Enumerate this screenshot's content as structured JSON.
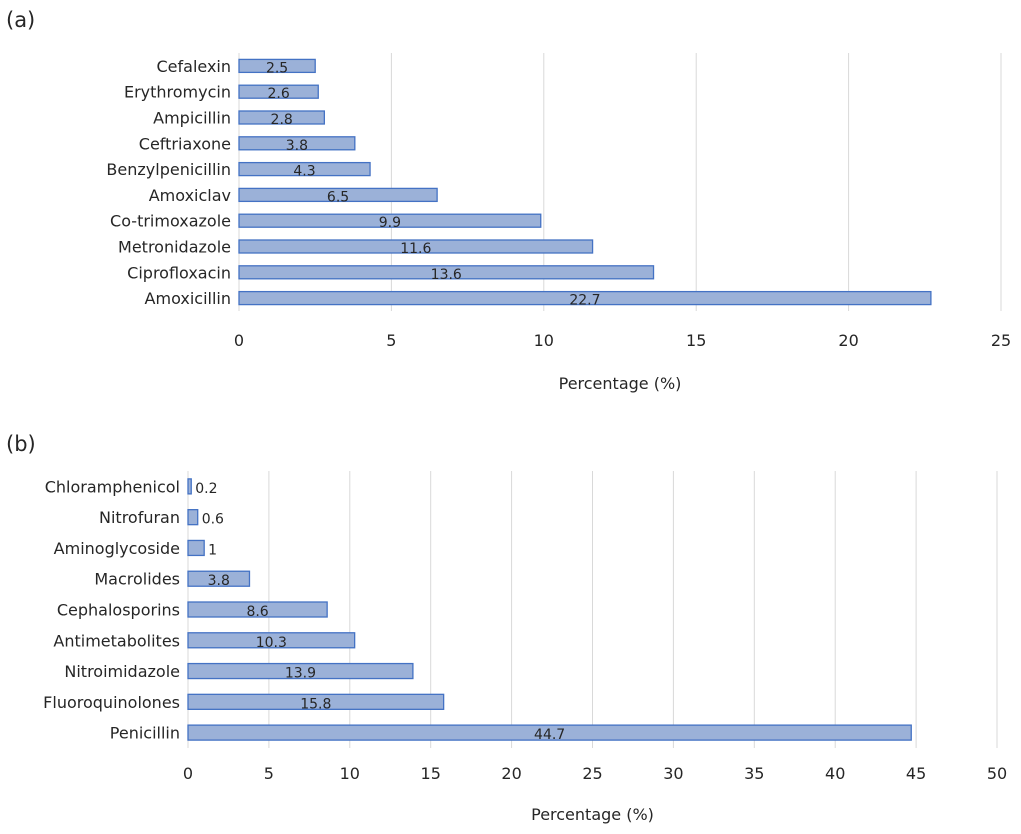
{
  "panels": {
    "a": {
      "label": "(a)"
    },
    "b": {
      "label": "(b)"
    }
  },
  "chart_data": [
    {
      "type": "bar",
      "orientation": "horizontal",
      "categories": [
        "Cefalexin",
        "Erythromycin",
        "Ampicillin",
        "Ceftriaxone",
        "Benzylpenicillin",
        "Amoxiclav",
        "Co-trimoxazole",
        "Metronidazole",
        "Ciprofloxacin",
        "Amoxicillin"
      ],
      "values": [
        2.5,
        2.6,
        2.8,
        3.8,
        4.3,
        6.5,
        9.9,
        11.6,
        13.6,
        22.7
      ],
      "data_labels": [
        "2.5",
        "2.6",
        "2.8",
        "3.8",
        "4.3",
        "6.5",
        "9.9",
        "11.6",
        "13.6",
        "22.7"
      ],
      "xlabel": "Percentage (%)",
      "ylabel": "",
      "xlim": [
        0,
        25
      ],
      "xticks": [
        0,
        5,
        10,
        15,
        20,
        25
      ],
      "grid": true,
      "bar_fill": "#9bb1d8",
      "bar_stroke": "#4472c4"
    },
    {
      "type": "bar",
      "orientation": "horizontal",
      "categories": [
        "Chloramphenicol",
        "Nitrofuran",
        "Aminoglycoside",
        "Macrolides",
        "Cephalosporins",
        "Antimetabolites",
        "Nitroimidazole",
        "Fluoroquinolones",
        "Penicillin"
      ],
      "values": [
        0.2,
        0.6,
        1,
        3.8,
        8.6,
        10.3,
        13.9,
        15.8,
        44.7
      ],
      "data_labels": [
        "0.2",
        "0.6",
        "1",
        "3.8",
        "8.6",
        "10.3",
        "13.9",
        "15.8",
        "44.7"
      ],
      "xlabel": "Percentage (%)",
      "ylabel": "",
      "xlim": [
        0,
        50
      ],
      "xticks": [
        0,
        5,
        10,
        15,
        20,
        25,
        30,
        35,
        40,
        45,
        50
      ],
      "grid": true,
      "bar_fill": "#9bb1d8",
      "bar_stroke": "#4472c4"
    }
  ]
}
